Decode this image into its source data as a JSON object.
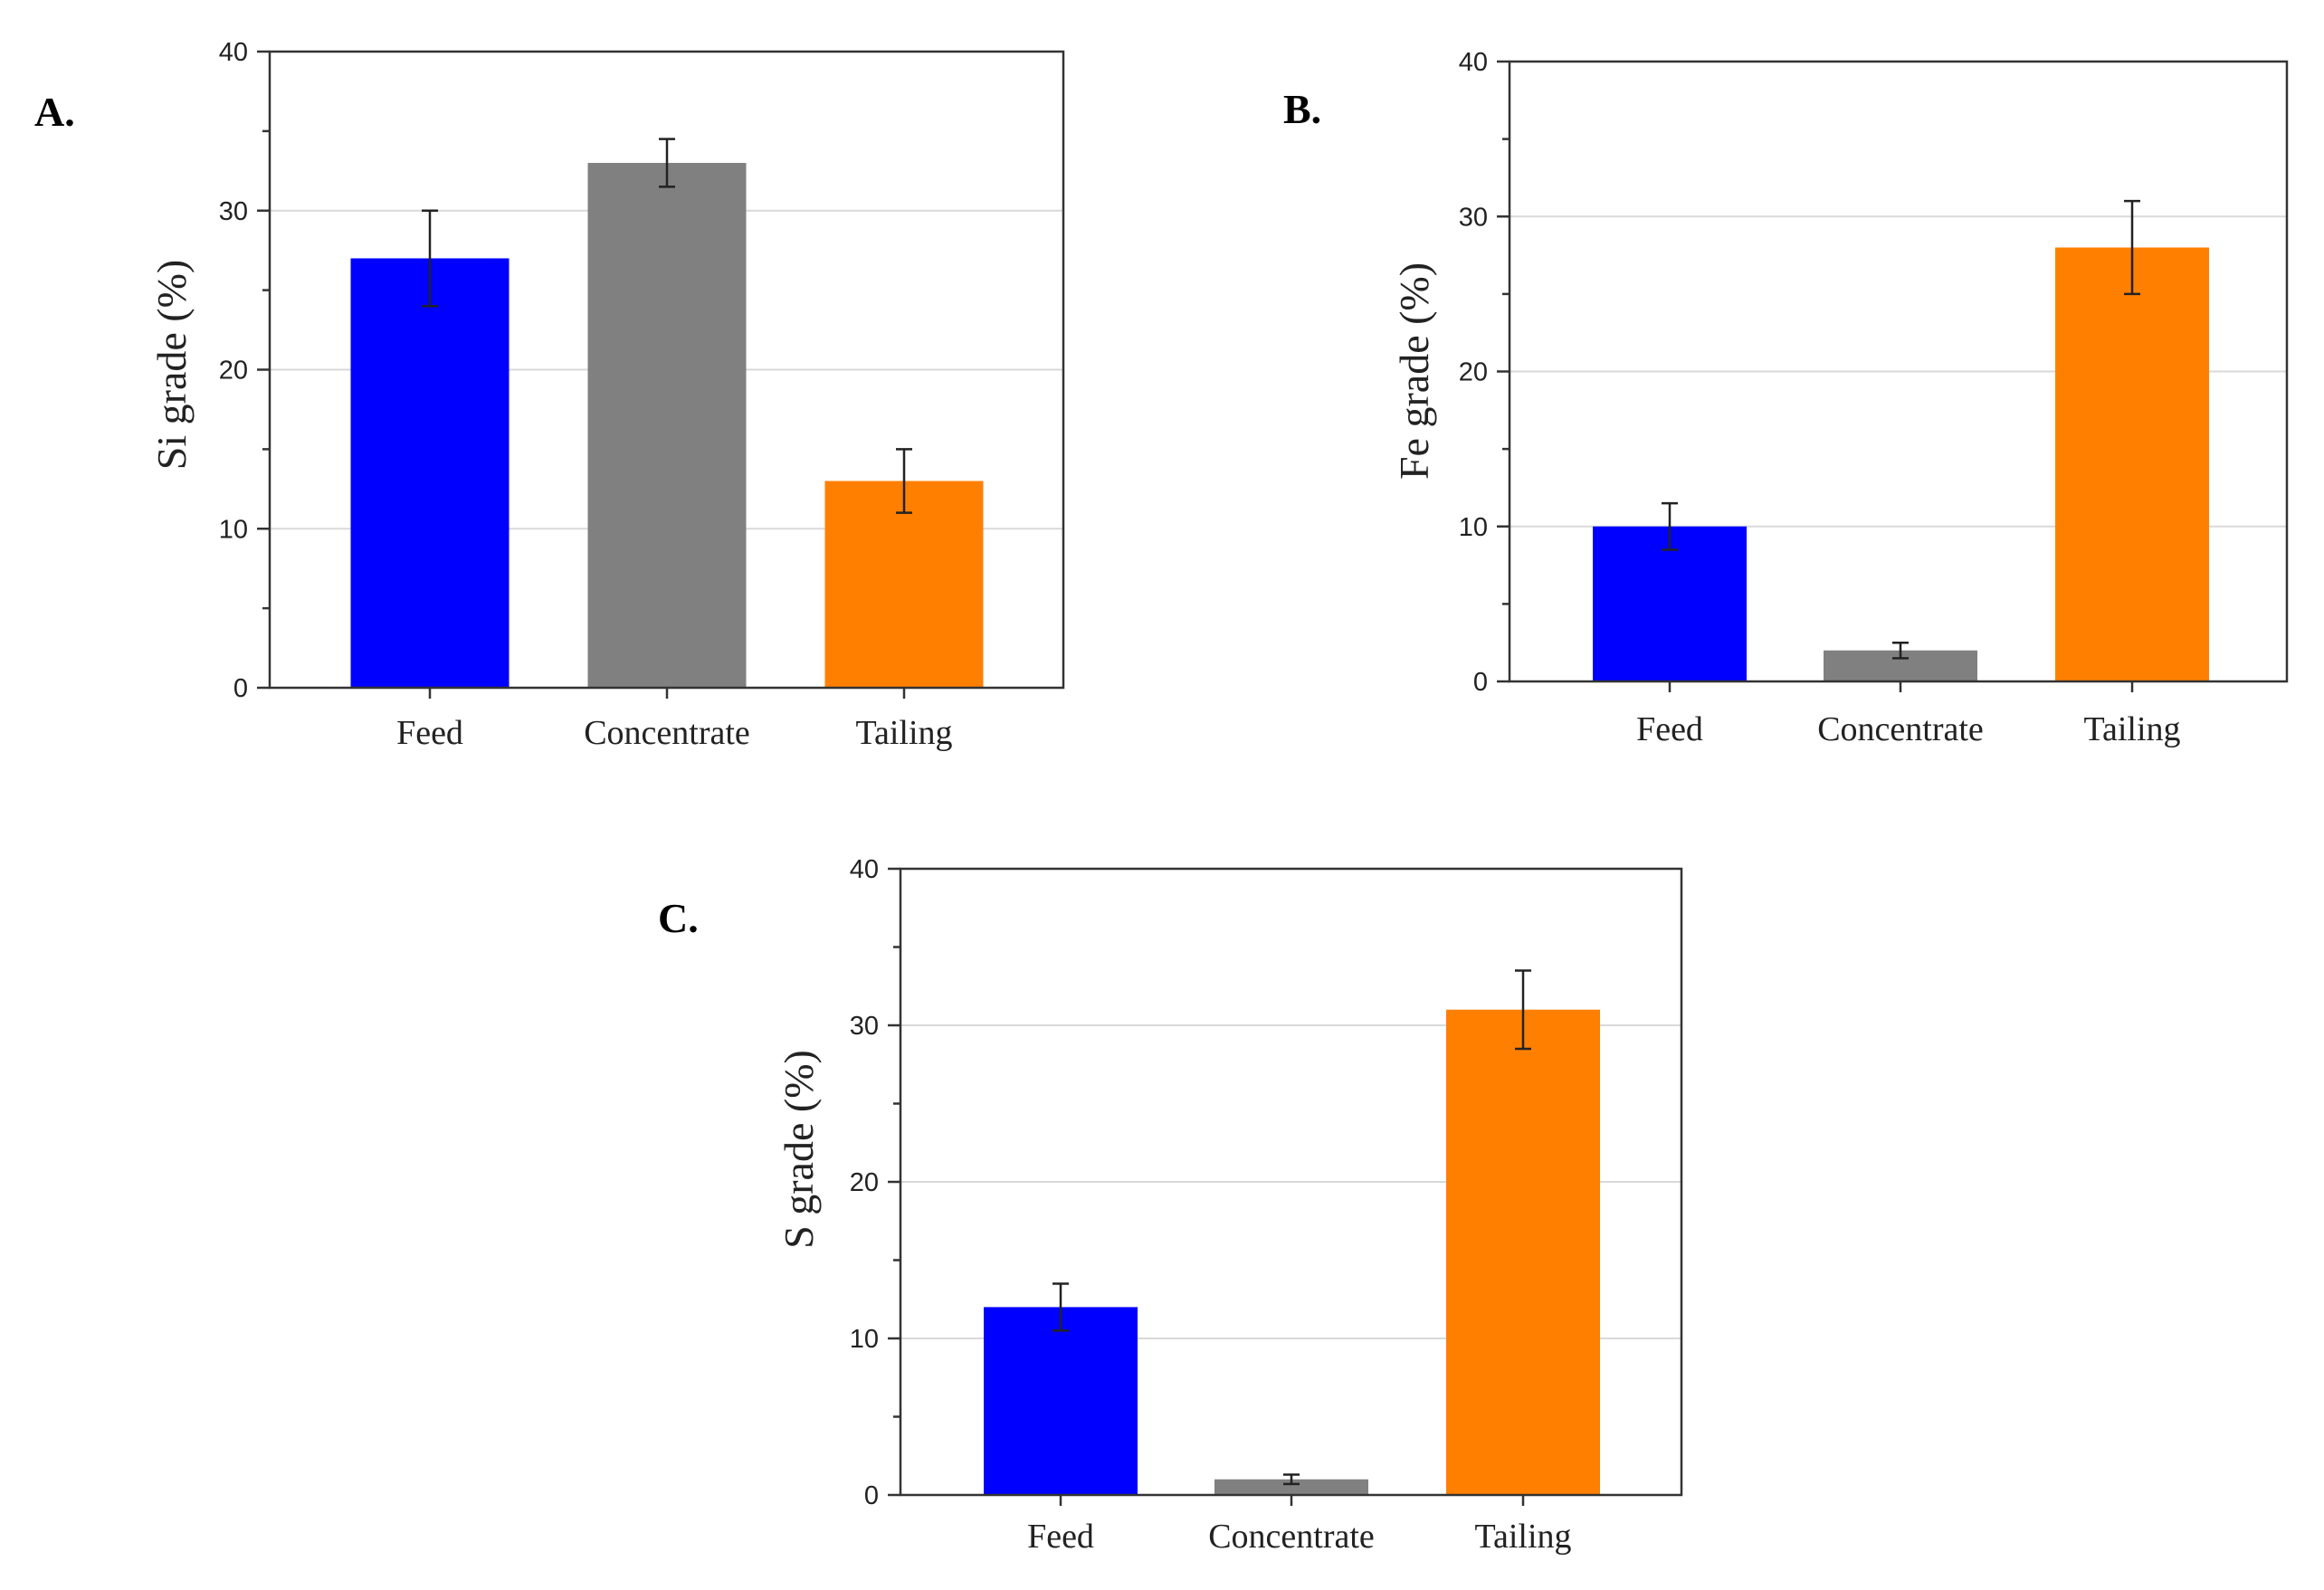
{
  "colors": {
    "feed": "#0000ff",
    "concentrate": "#808080",
    "tailing": "#ff8000"
  },
  "chart_data": [
    {
      "type": "bar",
      "panel": "A.",
      "categories": [
        "Feed",
        "Concentrate",
        "Tailing"
      ],
      "values": [
        27,
        33,
        13
      ],
      "errors": [
        3,
        1.5,
        2
      ],
      "ylabel": "Si grade (%)",
      "xlabel": "",
      "ylim": [
        0,
        40
      ],
      "yticks": [
        "0",
        "10",
        "20",
        "30",
        "40"
      ],
      "grid": true
    },
    {
      "type": "bar",
      "panel": "B.",
      "categories": [
        "Feed",
        "Concentrate",
        "Tailing"
      ],
      "values": [
        10,
        2,
        28
      ],
      "errors": [
        1.5,
        0.5,
        3
      ],
      "ylabel": "Fe grade (%)",
      "xlabel": "",
      "ylim": [
        0,
        40
      ],
      "yticks": [
        "0",
        "10",
        "20",
        "30",
        "40"
      ],
      "grid": true
    },
    {
      "type": "bar",
      "panel": "C.",
      "categories": [
        "Feed",
        "Concentrate",
        "Tailing"
      ],
      "values": [
        12,
        1,
        31
      ],
      "errors": [
        1.5,
        0.3,
        2.5
      ],
      "ylabel": "S grade (%)",
      "xlabel": "",
      "ylim": [
        0,
        40
      ],
      "yticks": [
        "0",
        "10",
        "20",
        "30",
        "40"
      ],
      "grid": true
    }
  ]
}
